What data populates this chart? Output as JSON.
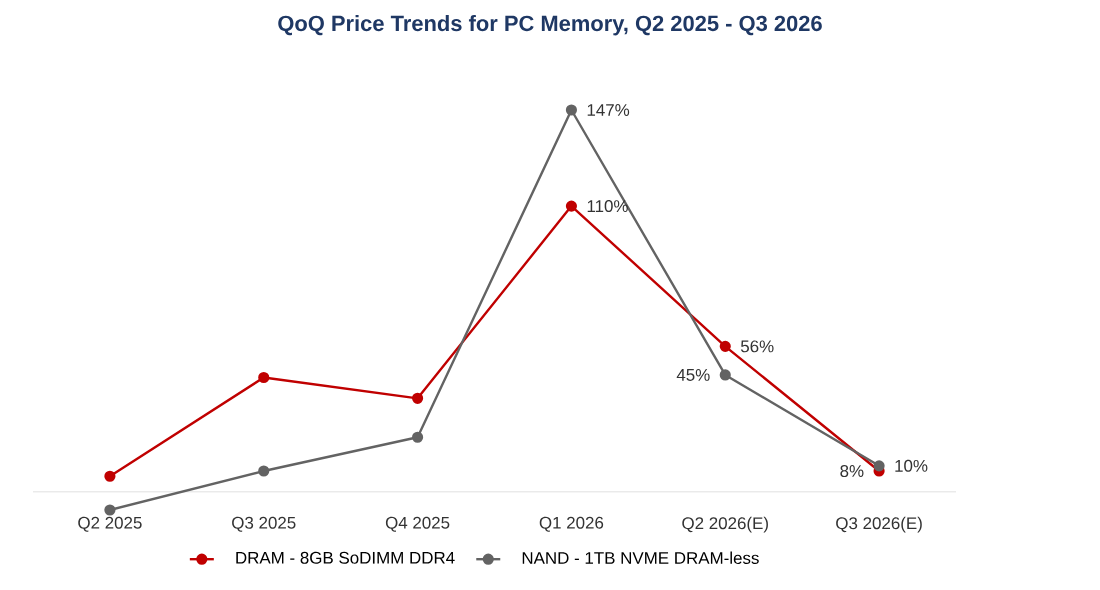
{
  "chart_data": {
    "type": "line",
    "title": "QoQ Price Trends for PC Memory, Q2 2025 - Q3 2026",
    "categories": [
      "Q2 2025",
      "Q3 2025",
      "Q4 2025",
      "Q1 2026",
      "Q2 2026(E)",
      "Q3 2026(E)"
    ],
    "series": [
      {
        "name": "DRAM - 8GB SoDIMM DDR4",
        "color": "#c00000",
        "values": [
          6,
          44,
          36,
          110,
          56,
          8
        ],
        "value_labels": [
          null,
          null,
          null,
          "110%",
          "56%",
          "8%"
        ]
      },
      {
        "name": "NAND - 1TB NVME DRAM-less",
        "color": "#636363",
        "values": [
          -7,
          8,
          21,
          147,
          45,
          10
        ],
        "value_labels": [
          null,
          null,
          null,
          "147%",
          "45%",
          "10%"
        ]
      }
    ],
    "marker": "circle",
    "line_style": "solid",
    "legend": "bottom",
    "grid": false
  }
}
